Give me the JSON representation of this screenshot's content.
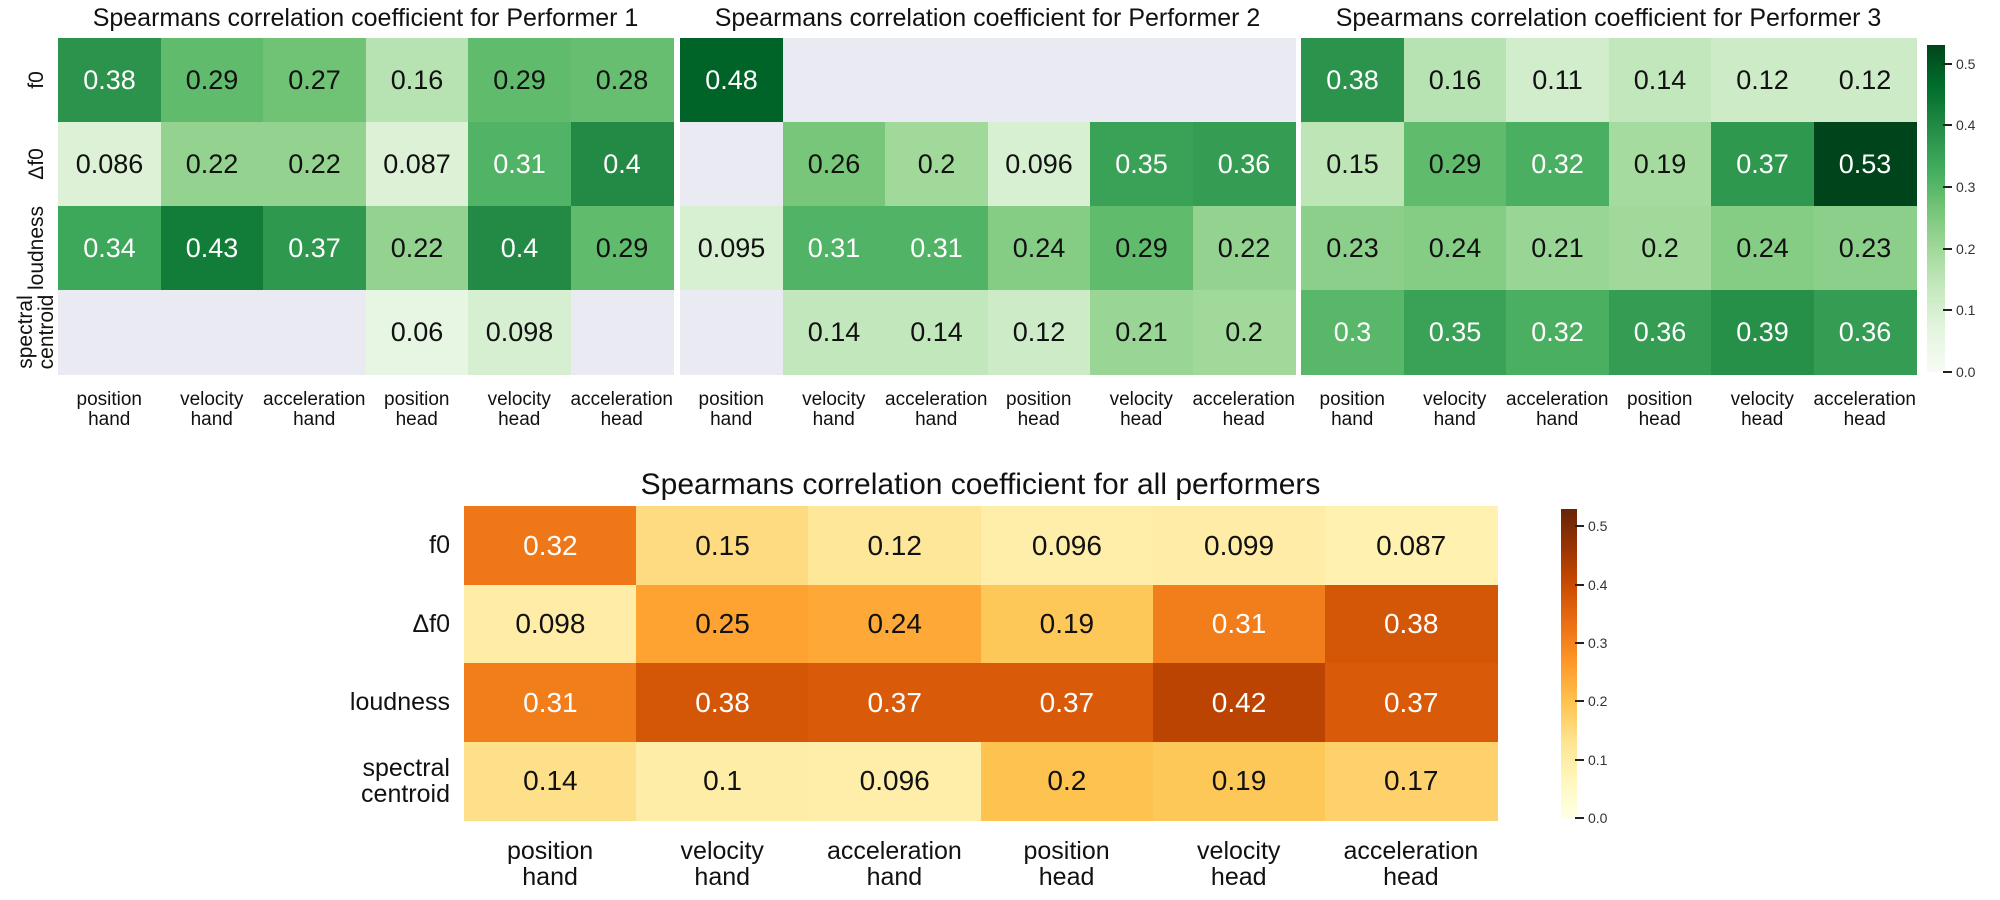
{
  "chart_data": [
    {
      "type": "heatmap",
      "title": "Spearmans correlation coefficient for Performer 1",
      "rows": [
        "f0",
        "Δf0",
        "loudness",
        "spectral\ncentroid"
      ],
      "columns": [
        "position\nhand",
        "velocity\nhand",
        "acceleration\nhand",
        "position\nhead",
        "velocity\nhead",
        "acceleration\nhead"
      ],
      "values": [
        [
          0.38,
          0.29,
          0.27,
          0.16,
          0.29,
          0.28
        ],
        [
          0.086,
          0.22,
          0.22,
          0.087,
          0.31,
          0.4
        ],
        [
          0.34,
          0.43,
          0.37,
          0.22,
          0.4,
          0.29
        ],
        [
          null,
          null,
          null,
          0.06,
          0.098,
          null
        ]
      ],
      "labels": [
        [
          "0.38",
          "0.29",
          "0.27",
          "0.16",
          "0.29",
          "0.28"
        ],
        [
          "0.086",
          "0.22",
          "0.22",
          "0.087",
          "0.31",
          "0.4"
        ],
        [
          "0.34",
          "0.43",
          "0.37",
          "0.22",
          "0.4",
          "0.29"
        ],
        [
          "",
          "",
          "",
          "0.06",
          "0.098",
          ""
        ]
      ],
      "colormap": "Greens",
      "vmin": 0,
      "vmax": 0.53,
      "show_row_labels": true
    },
    {
      "type": "heatmap",
      "title": "Spearmans correlation coefficient for Performer 2",
      "rows": [
        "f0",
        "Δf0",
        "loudness",
        "spectral\ncentroid"
      ],
      "columns": [
        "position\nhand",
        "velocity\nhand",
        "acceleration\nhand",
        "position\nhead",
        "velocity\nhead",
        "acceleration\nhead"
      ],
      "values": [
        [
          0.48,
          null,
          null,
          null,
          null,
          null
        ],
        [
          null,
          0.26,
          0.2,
          0.096,
          0.35,
          0.36
        ],
        [
          0.095,
          0.31,
          0.31,
          0.24,
          0.29,
          0.22
        ],
        [
          null,
          0.14,
          0.14,
          0.12,
          0.21,
          0.2
        ]
      ],
      "labels": [
        [
          "0.48",
          "",
          "",
          "",
          "",
          ""
        ],
        [
          "",
          "0.26",
          "0.2",
          "0.096",
          "0.35",
          "0.36"
        ],
        [
          "0.095",
          "0.31",
          "0.31",
          "0.24",
          "0.29",
          "0.22"
        ],
        [
          "",
          "0.14",
          "0.14",
          "0.12",
          "0.21",
          "0.2"
        ]
      ],
      "colormap": "Greens",
      "vmin": 0,
      "vmax": 0.53,
      "show_row_labels": false
    },
    {
      "type": "heatmap",
      "title": "Spearmans correlation coefficient for Performer 3",
      "rows": [
        "f0",
        "Δf0",
        "loudness",
        "spectral\ncentroid"
      ],
      "columns": [
        "position\nhand",
        "velocity\nhand",
        "acceleration\nhand",
        "position\nhead",
        "velocity\nhead",
        "acceleration\nhead"
      ],
      "values": [
        [
          0.38,
          0.16,
          0.11,
          0.14,
          0.12,
          0.12
        ],
        [
          0.15,
          0.29,
          0.32,
          0.19,
          0.37,
          0.53
        ],
        [
          0.23,
          0.24,
          0.21,
          0.2,
          0.24,
          0.23
        ],
        [
          0.3,
          0.35,
          0.32,
          0.36,
          0.39,
          0.36
        ]
      ],
      "labels": [
        [
          "0.38",
          "0.16",
          "0.11",
          "0.14",
          "0.12",
          "0.12"
        ],
        [
          "0.15",
          "0.29",
          "0.32",
          "0.19",
          "0.37",
          "0.53"
        ],
        [
          "0.23",
          "0.24",
          "0.21",
          "0.2",
          "0.24",
          "0.23"
        ],
        [
          "0.3",
          "0.35",
          "0.32",
          "0.36",
          "0.39",
          "0.36"
        ]
      ],
      "colormap": "Greens",
      "vmin": 0,
      "vmax": 0.53,
      "show_row_labels": false,
      "colorbar_ticks": [
        "0.0",
        "0.1",
        "0.2",
        "0.3",
        "0.4",
        "0.5"
      ]
    },
    {
      "type": "heatmap",
      "title": "Spearmans correlation coefficient for all performers",
      "rows": [
        "f0",
        "Δf0",
        "loudness",
        "spectral\ncentroid"
      ],
      "columns": [
        "position\nhand",
        "velocity\nhand",
        "acceleration\nhand",
        "position\nhead",
        "velocity\nhead",
        "acceleration\nhead"
      ],
      "values": [
        [
          0.32,
          0.15,
          0.12,
          0.096,
          0.099,
          0.087
        ],
        [
          0.098,
          0.25,
          0.24,
          0.19,
          0.31,
          0.38
        ],
        [
          0.31,
          0.38,
          0.37,
          0.37,
          0.42,
          0.37
        ],
        [
          0.14,
          0.1,
          0.096,
          0.2,
          0.19,
          0.17
        ]
      ],
      "labels": [
        [
          "0.32",
          "0.15",
          "0.12",
          "0.096",
          "0.099",
          "0.087"
        ],
        [
          "0.098",
          "0.25",
          "0.24",
          "0.19",
          "0.31",
          "0.38"
        ],
        [
          "0.31",
          "0.38",
          "0.37",
          "0.37",
          "0.42",
          "0.37"
        ],
        [
          "0.14",
          "0.1",
          "0.096",
          "0.2",
          "0.19",
          "0.17"
        ]
      ],
      "colormap": "YlOrBr",
      "vmin": 0,
      "vmax": 0.53,
      "show_row_labels": true,
      "colorbar_ticks": [
        "0.0",
        "0.1",
        "0.2",
        "0.3",
        "0.4",
        "0.5"
      ]
    }
  ],
  "colors": {
    "missing": "#eaeaf2",
    "Greens": [
      "#f7fcf5",
      "#e5f5e0",
      "#c7e9c0",
      "#a1d99b",
      "#74c476",
      "#41ab5d",
      "#238b45",
      "#006d2c",
      "#00441b"
    ],
    "YlOrBr": [
      "#ffffe5",
      "#fff7bc",
      "#fee391",
      "#fec44f",
      "#fe9929",
      "#ec7014",
      "#cc4c02",
      "#993404",
      "#662506"
    ]
  }
}
